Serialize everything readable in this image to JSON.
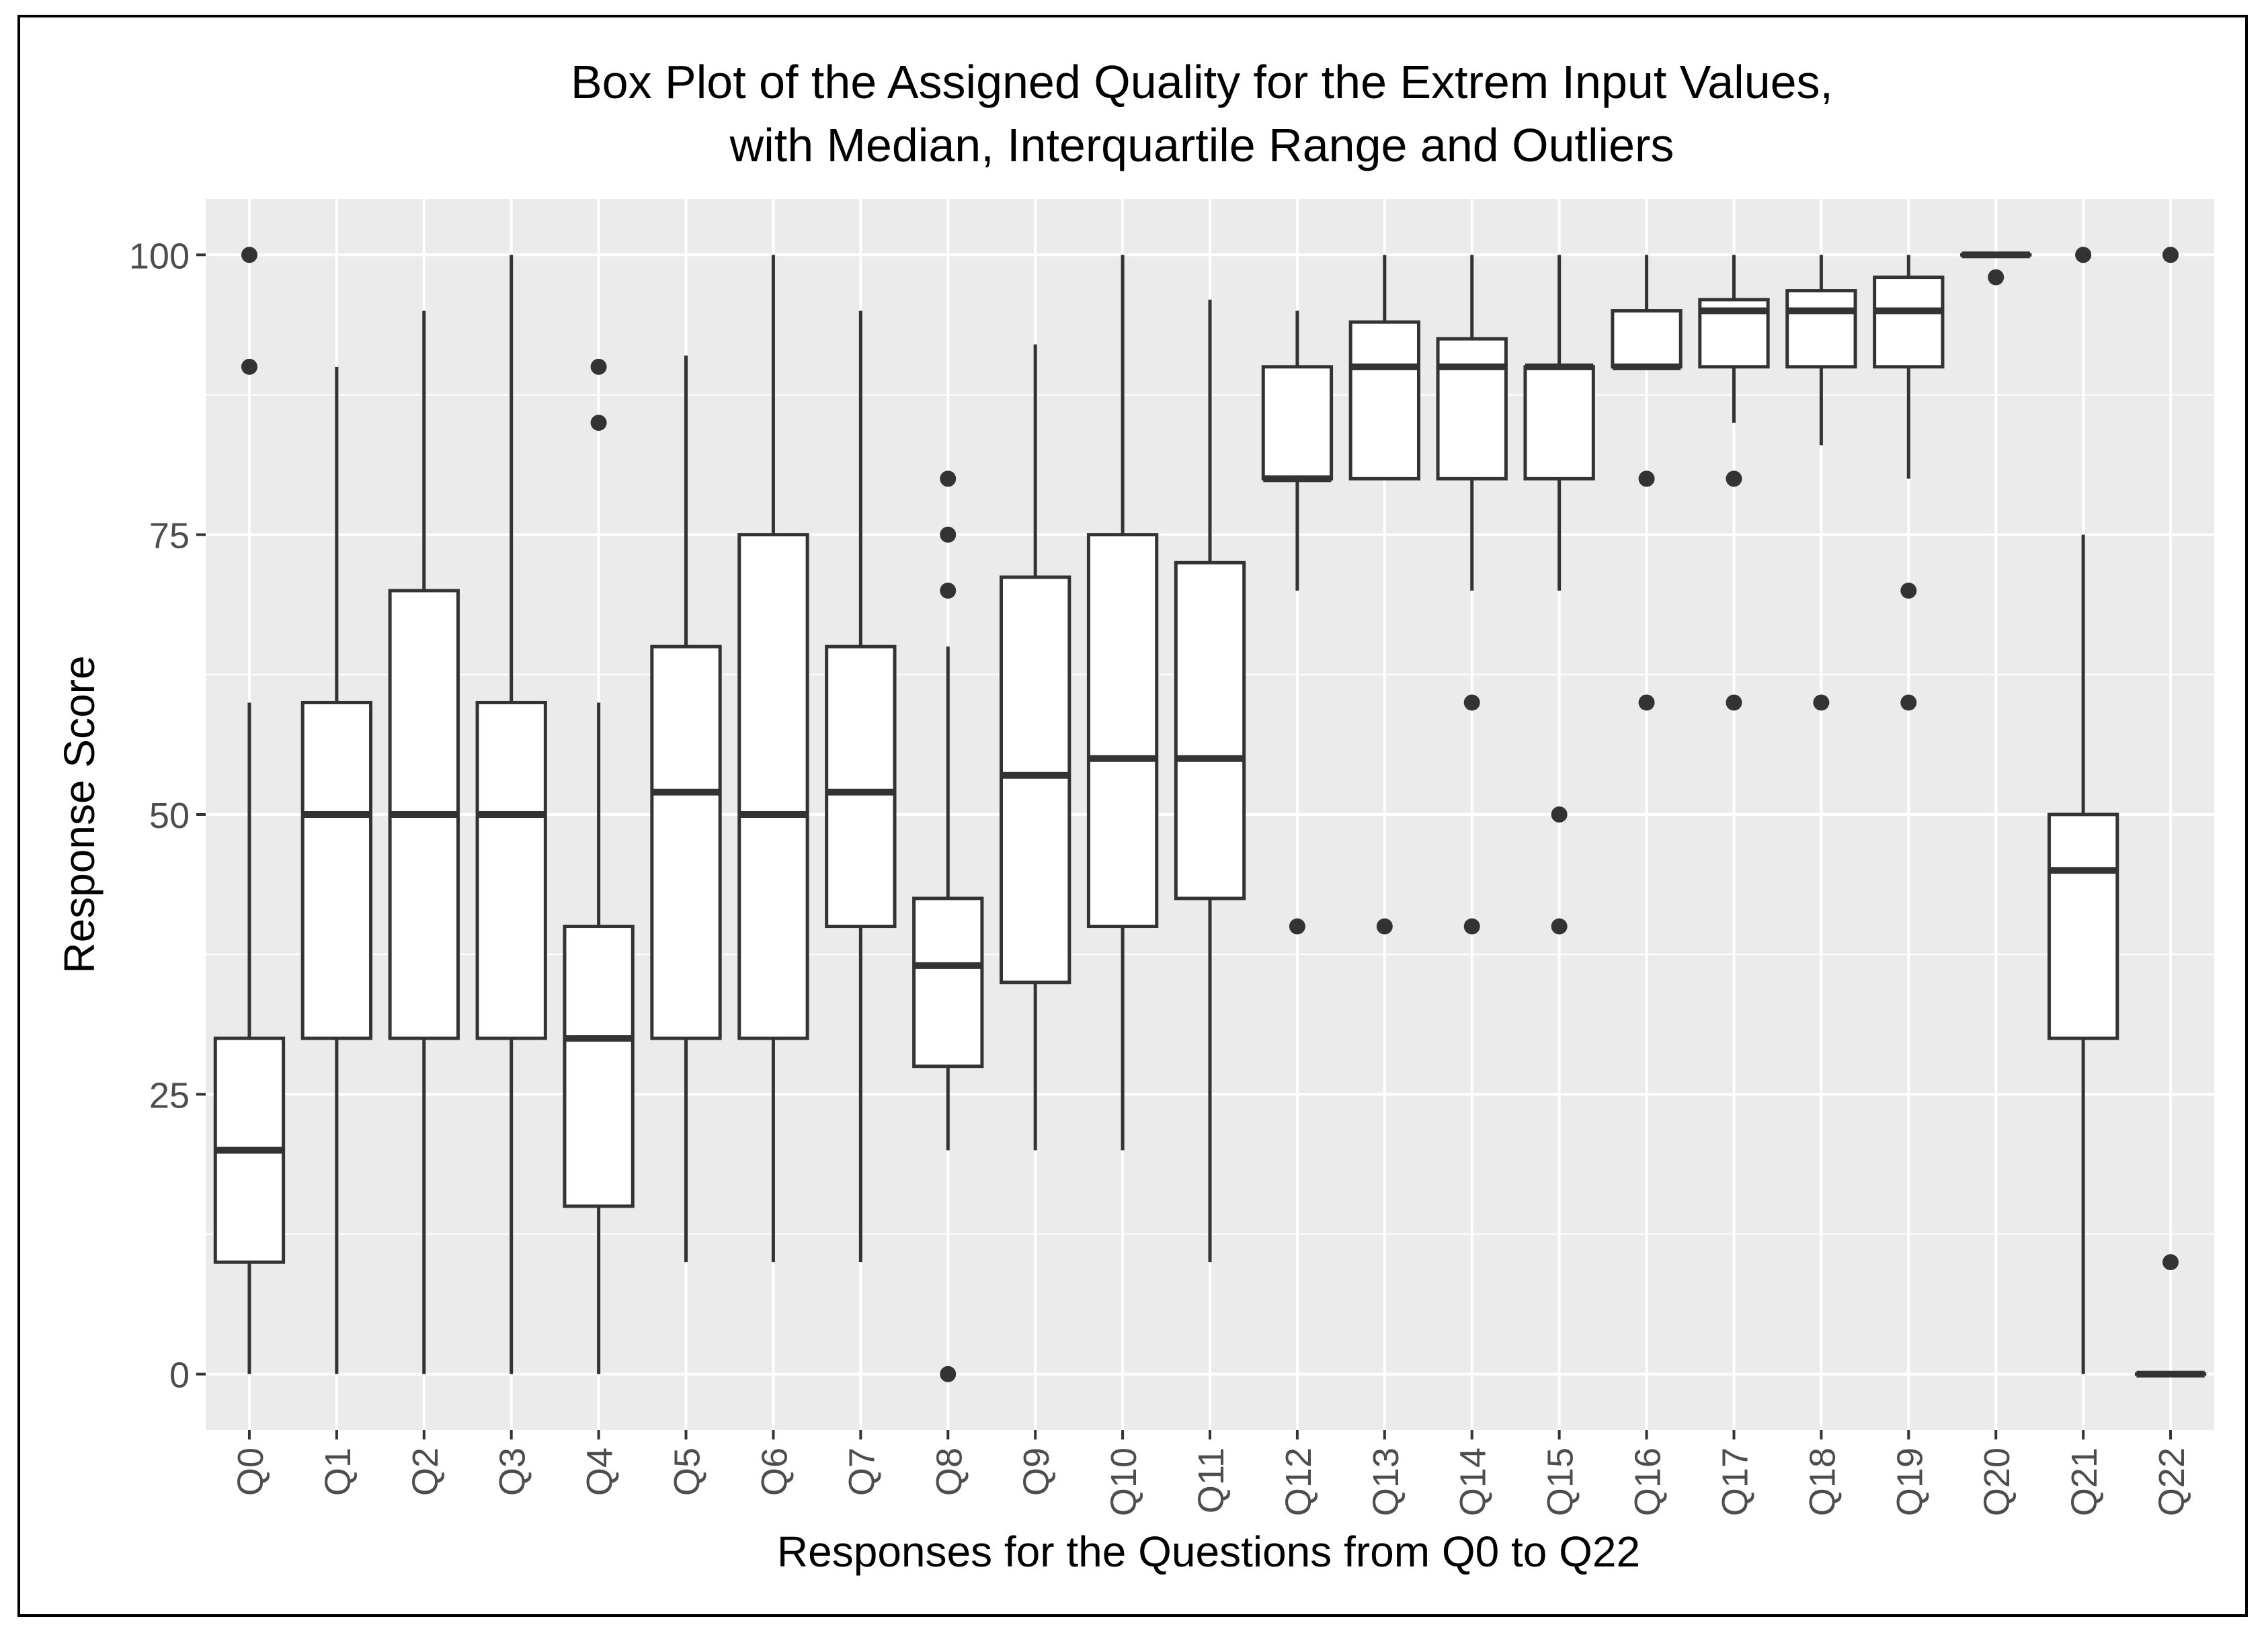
{
  "chart_data": {
    "type": "box",
    "title": "Box Plot of the Assigned Quality for the Extrem Input Values,",
    "subtitle": "with Median, Interquartile Range and Outliers",
    "xlabel": "Responses for the Questions from Q0 to Q22",
    "ylabel": "Response Score",
    "ylim": [
      -5,
      105
    ],
    "yticks": [
      0,
      25,
      50,
      75,
      100
    ],
    "ytick_labels": [
      "0",
      "25",
      "50",
      "75",
      "100"
    ],
    "grid": true,
    "colors": {
      "panel": "#ebebeb",
      "grid": "#ffffff",
      "box_fill": "#ffffff",
      "stroke": "#333333",
      "outlier": "#333333",
      "tick_text": "#4d4d4d",
      "title_text": "#000000"
    },
    "categories": [
      "Q0",
      "Q1",
      "Q2",
      "Q3",
      "Q4",
      "Q5",
      "Q6",
      "Q7",
      "Q8",
      "Q9",
      "Q10",
      "Q11",
      "Q12",
      "Q13",
      "Q14",
      "Q15",
      "Q16",
      "Q17",
      "Q18",
      "Q19",
      "Q20",
      "Q21",
      "Q22"
    ],
    "boxes": [
      {
        "label": "Q0",
        "min": 0,
        "q1": 10,
        "median": 20,
        "q3": 30,
        "max": 60,
        "outliers": [
          90,
          100
        ]
      },
      {
        "label": "Q1",
        "min": 0,
        "q1": 30,
        "median": 50,
        "q3": 60,
        "max": 90,
        "outliers": []
      },
      {
        "label": "Q2",
        "min": 0,
        "q1": 30,
        "median": 50,
        "q3": 70,
        "max": 95,
        "outliers": []
      },
      {
        "label": "Q3",
        "min": 0,
        "q1": 30,
        "median": 50,
        "q3": 60,
        "max": 100,
        "outliers": []
      },
      {
        "label": "Q4",
        "min": 0,
        "q1": 15,
        "median": 30,
        "q3": 40,
        "max": 60,
        "outliers": [
          85,
          90
        ]
      },
      {
        "label": "Q5",
        "min": 10,
        "q1": 30,
        "median": 52,
        "q3": 65,
        "max": 91,
        "outliers": []
      },
      {
        "label": "Q6",
        "min": 10,
        "q1": 30,
        "median": 50,
        "q3": 75,
        "max": 100,
        "outliers": []
      },
      {
        "label": "Q7",
        "min": 10,
        "q1": 40,
        "median": 52,
        "q3": 65,
        "max": 95,
        "outliers": []
      },
      {
        "label": "Q8",
        "min": 20,
        "q1": 27.5,
        "median": 36.5,
        "q3": 42.5,
        "max": 65,
        "outliers": [
          0,
          70,
          75,
          80
        ]
      },
      {
        "label": "Q9",
        "min": 20,
        "q1": 35,
        "median": 53.5,
        "q3": 71.2,
        "max": 92,
        "outliers": []
      },
      {
        "label": "Q10",
        "min": 20,
        "q1": 40,
        "median": 55,
        "q3": 75,
        "max": 100,
        "outliers": []
      },
      {
        "label": "Q11",
        "min": 10,
        "q1": 42.5,
        "median": 55,
        "q3": 72.5,
        "max": 96,
        "outliers": []
      },
      {
        "label": "Q12",
        "min": 70,
        "q1": 80,
        "median": 80,
        "q3": 90,
        "max": 95,
        "outliers": [
          40
        ]
      },
      {
        "label": "Q13",
        "min": 80,
        "q1": 80,
        "median": 90,
        "q3": 94,
        "max": 100,
        "outliers": [
          40
        ]
      },
      {
        "label": "Q14",
        "min": 70,
        "q1": 80,
        "median": 90,
        "q3": 92.5,
        "max": 100,
        "outliers": [
          40,
          60
        ]
      },
      {
        "label": "Q15",
        "min": 70,
        "q1": 80,
        "median": 90,
        "q3": 90,
        "max": 100,
        "outliers": [
          40,
          50
        ]
      },
      {
        "label": "Q16",
        "min": 90,
        "q1": 90,
        "median": 90,
        "q3": 95,
        "max": 100,
        "outliers": [
          60,
          80
        ]
      },
      {
        "label": "Q17",
        "min": 85,
        "q1": 90,
        "median": 95,
        "q3": 96,
        "max": 100,
        "outliers": [
          60,
          80
        ]
      },
      {
        "label": "Q18",
        "min": 83,
        "q1": 90,
        "median": 95,
        "q3": 96.8,
        "max": 100,
        "outliers": [
          60
        ]
      },
      {
        "label": "Q19",
        "min": 80,
        "q1": 90,
        "median": 95,
        "q3": 98,
        "max": 100,
        "outliers": [
          60,
          70
        ]
      },
      {
        "label": "Q20",
        "min": 100,
        "q1": 100,
        "median": 100,
        "q3": 100,
        "max": 100,
        "outliers": [
          98
        ]
      },
      {
        "label": "Q21",
        "min": 0,
        "q1": 30,
        "median": 45,
        "q3": 50,
        "max": 75,
        "outliers": [
          100
        ]
      },
      {
        "label": "Q22",
        "min": 0,
        "q1": 0,
        "median": 0,
        "q3": 0,
        "max": 0,
        "outliers": [
          10,
          100
        ]
      }
    ]
  }
}
